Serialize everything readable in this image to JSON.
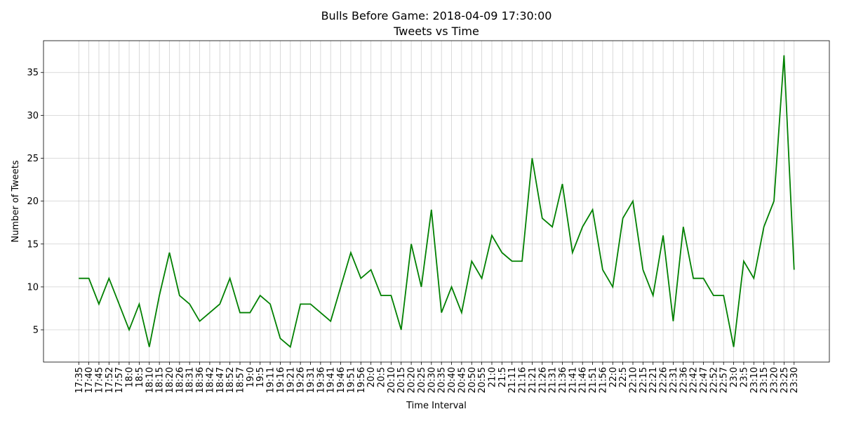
{
  "chart_data": {
    "type": "line",
    "title": "Bulls Before Game: 2018-04-09 17:30:00",
    "subtitle": "Tweets vs Time",
    "x_label": "Time Interval",
    "y_label": "Number of Tweets",
    "categories": [
      "17:35",
      "17:40",
      "17:45",
      "17:52",
      "17:57",
      "18:0",
      "18:5",
      "18:10",
      "18:15",
      "18:20",
      "18:26",
      "18:31",
      "18:36",
      "18:42",
      "18:47",
      "18:52",
      "18:57",
      "19:0",
      "19:5",
      "19:11",
      "19:16",
      "19:21",
      "19:26",
      "19:31",
      "19:36",
      "19:41",
      "19:46",
      "19:51",
      "19:56",
      "20:0",
      "20:5",
      "20:10",
      "20:15",
      "20:20",
      "20:25",
      "20:30",
      "20:35",
      "20:40",
      "20:45",
      "20:50",
      "20:55",
      "21:0",
      "21:5",
      "21:11",
      "21:16",
      "21:21",
      "21:26",
      "21:31",
      "21:36",
      "21:41",
      "21:46",
      "21:51",
      "21:56",
      "22:0",
      "22:5",
      "22:10",
      "22:15",
      "22:21",
      "22:26",
      "22:31",
      "22:36",
      "22:42",
      "22:47",
      "22:52",
      "22:57",
      "23:0",
      "23:5",
      "23:10",
      "23:15",
      "23:20",
      "23:25",
      "23:30"
    ],
    "values": [
      11,
      11,
      8,
      11,
      8,
      5,
      8,
      3,
      9,
      14,
      9,
      8,
      6,
      7,
      8,
      11,
      7,
      7,
      9,
      8,
      4,
      3,
      8,
      8,
      7,
      6,
      10,
      14,
      11,
      12,
      9,
      9,
      5,
      15,
      10,
      19,
      7,
      10,
      7,
      13,
      11,
      16,
      14,
      13,
      13,
      25,
      18,
      17,
      22,
      14,
      17,
      19,
      12,
      10,
      18,
      20,
      12,
      9,
      16,
      6,
      17,
      11,
      11,
      9,
      9,
      3,
      13,
      11,
      17,
      20,
      37,
      12
    ],
    "color": "green",
    "ylim": [
      1.24,
      38.7
    ],
    "yticks": [
      5,
      10,
      15,
      20,
      25,
      30,
      35
    ],
    "grid": true
  }
}
